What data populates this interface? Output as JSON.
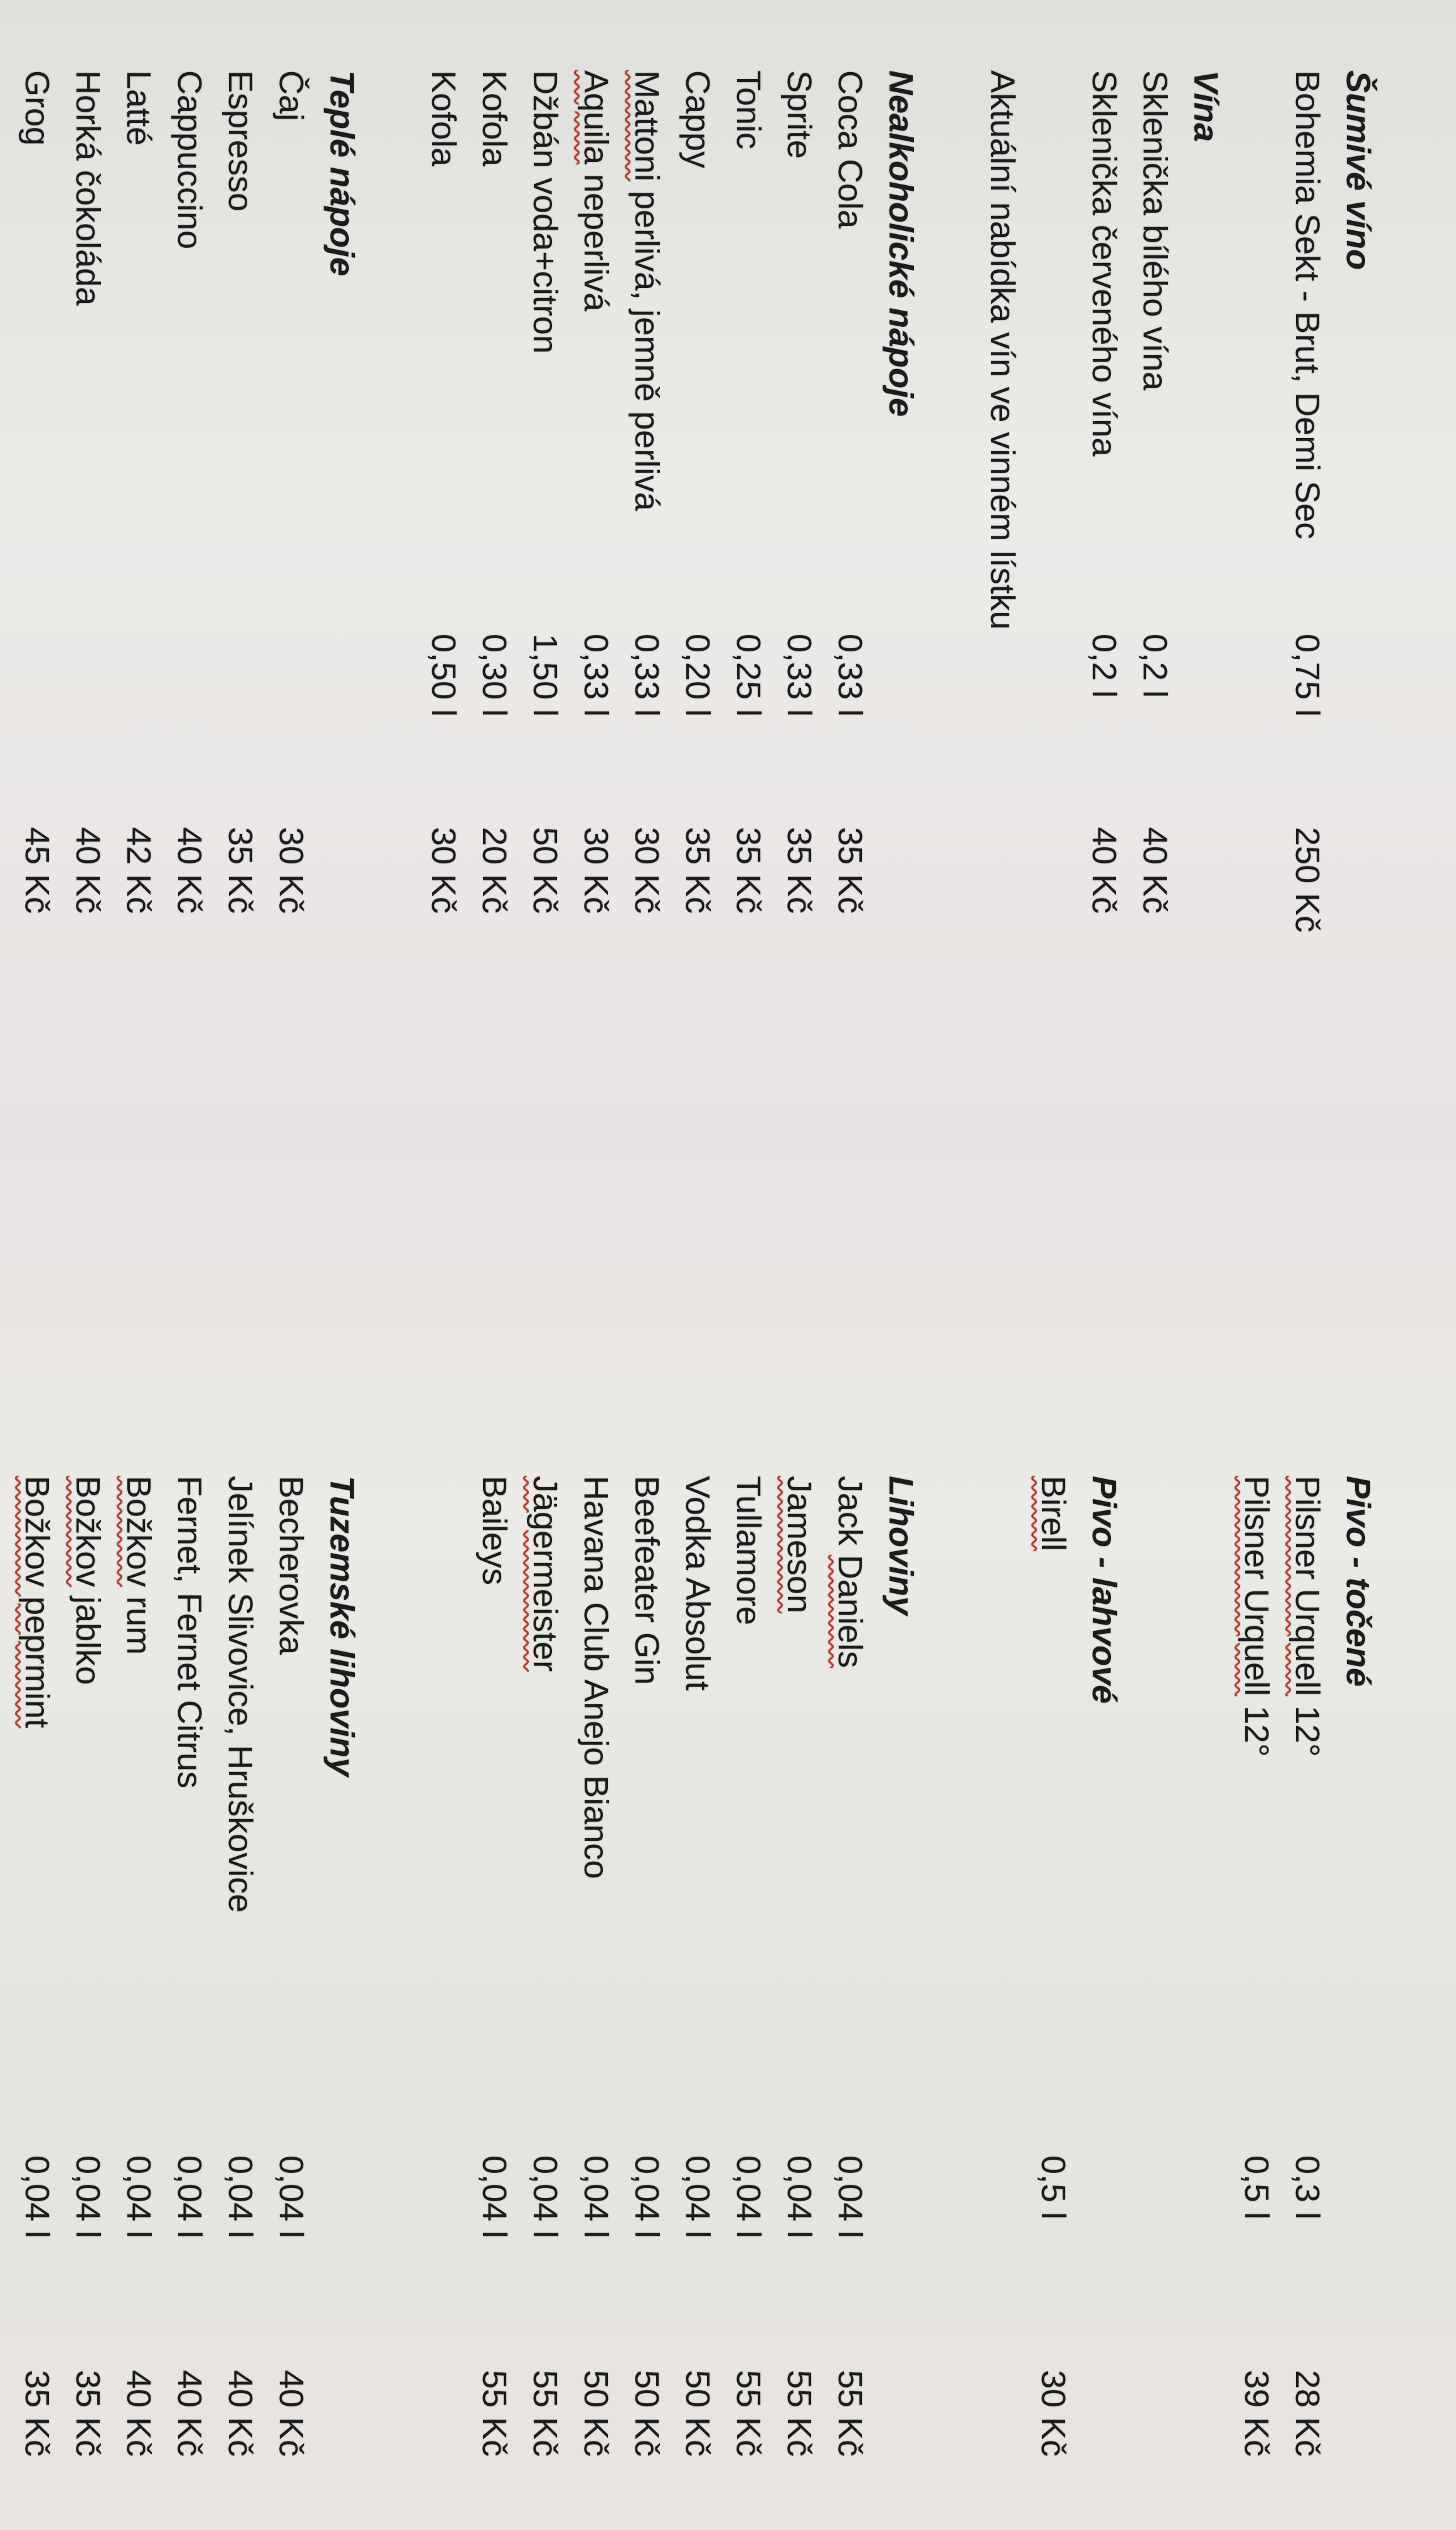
{
  "columns": [
    {
      "rows": [
        {
          "type": "header",
          "name": "Šumivé víno"
        },
        {
          "type": "item",
          "name": "Bohemia Sekt - Brut, Demi Sec",
          "volume": "0,75 l",
          "price": "250 Kč"
        },
        {
          "type": "blank"
        },
        {
          "type": "header",
          "name": "Vína"
        },
        {
          "type": "item",
          "name": "Sklenička bílého vína",
          "volume": "0,2 l",
          "price": "40 Kč"
        },
        {
          "type": "item",
          "name": "Sklenička červeného vína",
          "volume": "0,2 l",
          "price": "40 Kč"
        },
        {
          "type": "blank"
        },
        {
          "type": "item",
          "name": "Aktuální nabídka vín ve vinném lístku"
        },
        {
          "type": "blank"
        },
        {
          "type": "header",
          "name": "Nealkoholické nápoje"
        },
        {
          "type": "item",
          "name": "Coca Cola",
          "volume": "0,33 l",
          "price": "35 Kč"
        },
        {
          "type": "item",
          "name": "Sprite",
          "volume": "0,33 l",
          "price": "35 Kč"
        },
        {
          "type": "item",
          "name": "Tonic",
          "volume": "0,25 l",
          "price": "35 Kč"
        },
        {
          "type": "item",
          "name": "Cappy",
          "volume": "0,20 l",
          "price": "35 Kč"
        },
        {
          "type": "item",
          "name": "Mattoni perlivá, jemně perlivá",
          "misspelled": "Mattoni",
          "volume": "0,33 l",
          "price": "30 Kč"
        },
        {
          "type": "item",
          "name": "Aquila neperlivá",
          "misspelled": "Aquila",
          "volume": "0,33 l",
          "price": "30 Kč"
        },
        {
          "type": "item",
          "name": "Džbán voda+citron",
          "volume": "1,50 l",
          "price": "50 Kč"
        },
        {
          "type": "item",
          "name": "Kofola",
          "volume": "0,30 l",
          "price": "20 Kč"
        },
        {
          "type": "item",
          "name": "Kofola",
          "volume": "0,50 l",
          "price": "30 Kč"
        },
        {
          "type": "blank"
        },
        {
          "type": "header",
          "name": "Teplé nápoje"
        },
        {
          "type": "item",
          "name": "Čaj",
          "price": "30 Kč"
        },
        {
          "type": "item",
          "name": "Espresso",
          "price": "35 Kč"
        },
        {
          "type": "item",
          "name": "Cappuccino",
          "price": "40 Kč"
        },
        {
          "type": "item",
          "name": "Latté",
          "price": "42 Kč"
        },
        {
          "type": "item",
          "name": "Horká čokoláda",
          "price": "40 Kč"
        },
        {
          "type": "item",
          "name": "Grog",
          "price": "45 Kč"
        }
      ]
    },
    {
      "rows": [
        {
          "type": "header",
          "name": "Pivo - točené"
        },
        {
          "type": "item",
          "name": "Pilsner Urquell 12°",
          "misspelled": "Pilsner Urquell",
          "volume": "0,3 l",
          "price": "28 Kč"
        },
        {
          "type": "item",
          "name": "Pilsner Urquell 12°",
          "misspelled": "Pilsner Urquell",
          "volume": "0,5 l",
          "price": "39 Kč"
        },
        {
          "type": "blank"
        },
        {
          "type": "blank"
        },
        {
          "type": "header",
          "name": "Pivo - lahvové"
        },
        {
          "type": "item",
          "name": "Birell",
          "misspelled": "Birell",
          "volume": "0,5 l",
          "price": "30 Kč"
        },
        {
          "type": "blank"
        },
        {
          "type": "blank"
        },
        {
          "type": "header",
          "name": "Lihoviny"
        },
        {
          "type": "item",
          "name": "Jack Daniels",
          "misspelled": "Daniels",
          "volume": "0,04 l",
          "price": "55 Kč"
        },
        {
          "type": "item",
          "name": "Jameson",
          "misspelled": "Jameson",
          "volume": "0,04 l",
          "price": "55 Kč"
        },
        {
          "type": "item",
          "name": "Tullamore",
          "volume": "0,04 l",
          "price": "55 Kč"
        },
        {
          "type": "item",
          "name": "Vodka Absolut",
          "volume": "0,04 l",
          "price": "50 Kč"
        },
        {
          "type": "item",
          "name": "Beefeater Gin",
          "volume": "0,04 l",
          "price": "50 Kč"
        },
        {
          "type": "item",
          "name": "Havana Club Anejo Bianco",
          "volume": "0,04 l",
          "price": "50 Kč"
        },
        {
          "type": "item",
          "name": "Jägermeister",
          "misspelled": "Jägermeister",
          "volume": "0,04 l",
          "price": "55 Kč"
        },
        {
          "type": "item",
          "name": "Baileys",
          "volume": "0,04 l",
          "price": "55 Kč"
        },
        {
          "type": "blank"
        },
        {
          "type": "blank"
        },
        {
          "type": "header",
          "name": "Tuzemské lihoviny"
        },
        {
          "type": "item",
          "name": "Becherovka",
          "volume": "0,04 l",
          "price": "40 Kč"
        },
        {
          "type": "item",
          "name": "Jelínek Slivovice, Hruškovice",
          "volume": "0,04 l",
          "price": "40 Kč"
        },
        {
          "type": "item",
          "name": "Fernet, Fernet Citrus",
          "volume": "0,04 l",
          "price": "40 Kč"
        },
        {
          "type": "item",
          "name": "Božkov rum",
          "misspelled": "Božkov",
          "volume": "0,04 l",
          "price": "40 Kč"
        },
        {
          "type": "item",
          "name": "Božkov jablko",
          "misspelled": "Božkov",
          "volume": "0,04 l",
          "price": "35 Kč"
        },
        {
          "type": "item",
          "name": "Božkov peprmint",
          "misspelled": "Božkov peprmint",
          "volume": "0,04 l",
          "price": "35 Kč"
        }
      ]
    }
  ],
  "colors": {
    "text": "#1c1c1c",
    "spellcheck_underline": "#c0392b"
  }
}
